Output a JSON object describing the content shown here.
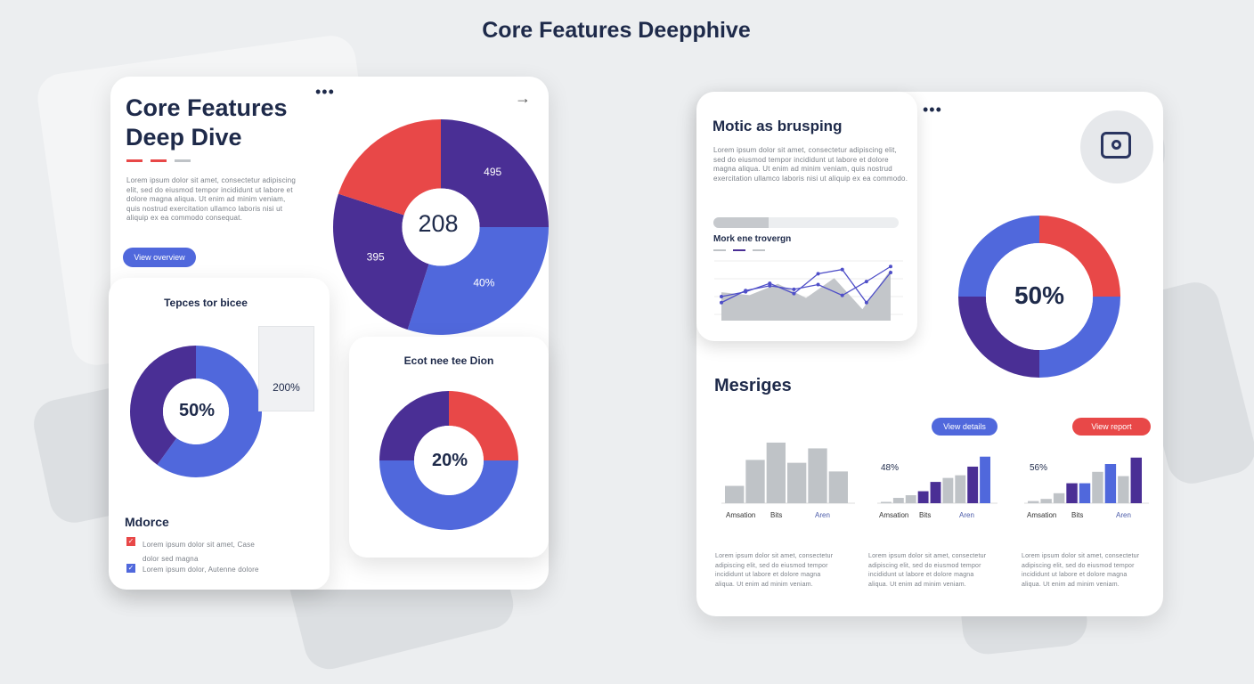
{
  "page_title": "Core Features Deepphive",
  "colors": {
    "navy": "#1e2a4a",
    "purple": "#4a2f95",
    "blue": "#5068dc",
    "red": "#e84848",
    "gray": "#bfc3c7",
    "bg": "#eceef0"
  },
  "left_card": {
    "title_line1": "Core Features",
    "title_line2": "Deep Dive",
    "paragraph": "Lorem ipsum dolor sit amet, consectetur adipiscing elit, sed do eiusmod tempor incididunt ut labore et dolore magna aliqua. Ut enim ad minim veniam, quis nostrud exercitation ullamco laboris nisi ut aliquip ex ea commodo consequat.",
    "button": "View overview",
    "menu_icon": "more-dots-icon",
    "arrow_icon": "arrow-right-icon",
    "pie_center": "208",
    "panel1_title": "Tepces tor bicee",
    "panel1_center": "50%",
    "panel1_box_value": "200%",
    "panel2_title": "Ecot nee tee Dion",
    "panel2_center": "20%",
    "list_title": "Mdorce",
    "list_items": [
      {
        "text": "Lorem ipsum dolor sit amet, Case",
        "text2": "dolor sed magna",
        "color": "#e84848",
        "checked": true
      },
      {
        "text": "Lorem ipsum dolor, Autenne dolore",
        "color": "#5068dc",
        "checked": true
      }
    ]
  },
  "right_card": {
    "panel_title": "Motic as brusping",
    "paragraph": "Lorem ipsum dolor sit amet, consectetur adipiscing elit, sed do eiusmod tempor incididunt ut labore et dolore magna aliqua. Ut enim ad minim veniam, quis nostrud exercitation ullamco laboris nisi ut aliquip ex ea commodo.",
    "progress": 0.3,
    "line_title": "Mork ene trovergn",
    "camera_icon": "camera-icon",
    "donut_center": "50%",
    "section_title": "Mesriges",
    "button_blue": "View details",
    "button_red": "View report",
    "bar_labels": [
      "Amsation",
      "Bits",
      "Aren"
    ],
    "bar2_value": "48%",
    "bar3_value": "56%",
    "paragraphs": [
      "Lorem ipsum dolor sit amet, consectetur adipiscing elit, sed do eiusmod tempor incididunt ut labore et dolore magna aliqua. Ut enim ad minim veniam.",
      "Lorem ipsum dolor sit amet, consectetur adipiscing elit, sed do eiusmod tempor incididunt ut labore et dolore magna aliqua. Ut enim ad minim veniam.",
      "Lorem ipsum dolor sit amet, consectetur adipiscing elit, sed do eiusmod tempor incididunt ut labore et dolore magna aliqua. Ut enim ad minim veniam."
    ]
  },
  "chart_data": [
    {
      "type": "pie",
      "id": "main-pie",
      "values": [
        25,
        30,
        25,
        20
      ],
      "colors": [
        "#4a2f95",
        "#5068dc",
        "#4a2f95",
        "#e84848"
      ],
      "labels": [
        "495",
        "40%",
        "395",
        ""
      ]
    },
    {
      "type": "pie",
      "id": "donut-50",
      "values": [
        25,
        35,
        15,
        25
      ],
      "colors": [
        "#5068dc",
        "#5068dc",
        "#4a2f95",
        "#4a2f95"
      ],
      "series_colors": [
        "#5068dc",
        "#4a2f95",
        "#4a2f95",
        "#e84848"
      ]
    },
    {
      "type": "pie",
      "id": "donut-20",
      "values": [
        25,
        50,
        25
      ],
      "colors": [
        "#e84848",
        "#5068dc",
        "#4a2f95"
      ]
    },
    {
      "type": "pie",
      "id": "donut-right",
      "values": [
        25,
        25,
        25,
        25
      ],
      "colors": [
        "#e84848",
        "#5068dc",
        "#4a2f95",
        "#5068dc"
      ]
    },
    {
      "type": "line",
      "id": "line-chart",
      "series": [
        {
          "values": [
            40,
            48,
            62,
            45,
            78,
            85,
            30,
            80
          ]
        },
        {
          "values": [
            30,
            50,
            58,
            52,
            60,
            42,
            65,
            90
          ]
        }
      ],
      "area": [
        50,
        45,
        65,
        40,
        75,
        20,
        90
      ]
    },
    {
      "type": "bar",
      "id": "bars-1",
      "values": [
        12,
        30,
        42,
        28,
        38,
        22
      ]
    },
    {
      "type": "bar",
      "id": "bars-2",
      "values": [
        2,
        8,
        12,
        18,
        32,
        38,
        42,
        55,
        70
      ]
    },
    {
      "type": "bar",
      "id": "bars-3",
      "values": [
        3,
        6,
        14,
        28,
        28,
        44,
        55,
        38,
        64
      ]
    }
  ]
}
